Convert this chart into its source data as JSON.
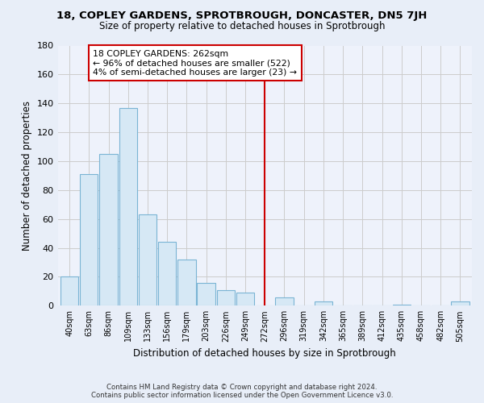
{
  "title": "18, COPLEY GARDENS, SPROTBROUGH, DONCASTER, DN5 7JH",
  "subtitle": "Size of property relative to detached houses in Sprotbrough",
  "xlabel": "Distribution of detached houses by size in Sprotbrough",
  "ylabel": "Number of detached properties",
  "bar_color": "#d6e8f5",
  "bar_edge_color": "#7ab4d4",
  "bin_labels": [
    "40sqm",
    "63sqm",
    "86sqm",
    "109sqm",
    "133sqm",
    "156sqm",
    "179sqm",
    "203sqm",
    "226sqm",
    "249sqm",
    "272sqm",
    "296sqm",
    "319sqm",
    "342sqm",
    "365sqm",
    "389sqm",
    "412sqm",
    "435sqm",
    "458sqm",
    "482sqm",
    "505sqm"
  ],
  "bar_heights": [
    20,
    91,
    105,
    137,
    63,
    44,
    32,
    16,
    11,
    9,
    0,
    6,
    0,
    3,
    0,
    0,
    0,
    1,
    0,
    0,
    3
  ],
  "ylim": [
    0,
    180
  ],
  "yticks": [
    0,
    20,
    40,
    60,
    80,
    100,
    120,
    140,
    160,
    180
  ],
  "vline_x_index": 10,
  "vline_color": "#cc0000",
  "annotation_title": "18 COPLEY GARDENS: 262sqm",
  "annotation_line1": "← 96% of detached houses are smaller (522)",
  "annotation_line2": "4% of semi-detached houses are larger (23) →",
  "annotation_box_color": "#ffffff",
  "annotation_box_edge": "#cc0000",
  "footer_line1": "Contains HM Land Registry data © Crown copyright and database right 2024.",
  "footer_line2": "Contains public sector information licensed under the Open Government Licence v3.0.",
  "fig_bg_color": "#e8eef8",
  "plot_bg_color": "#eef2fb",
  "grid_color": "#cccccc"
}
